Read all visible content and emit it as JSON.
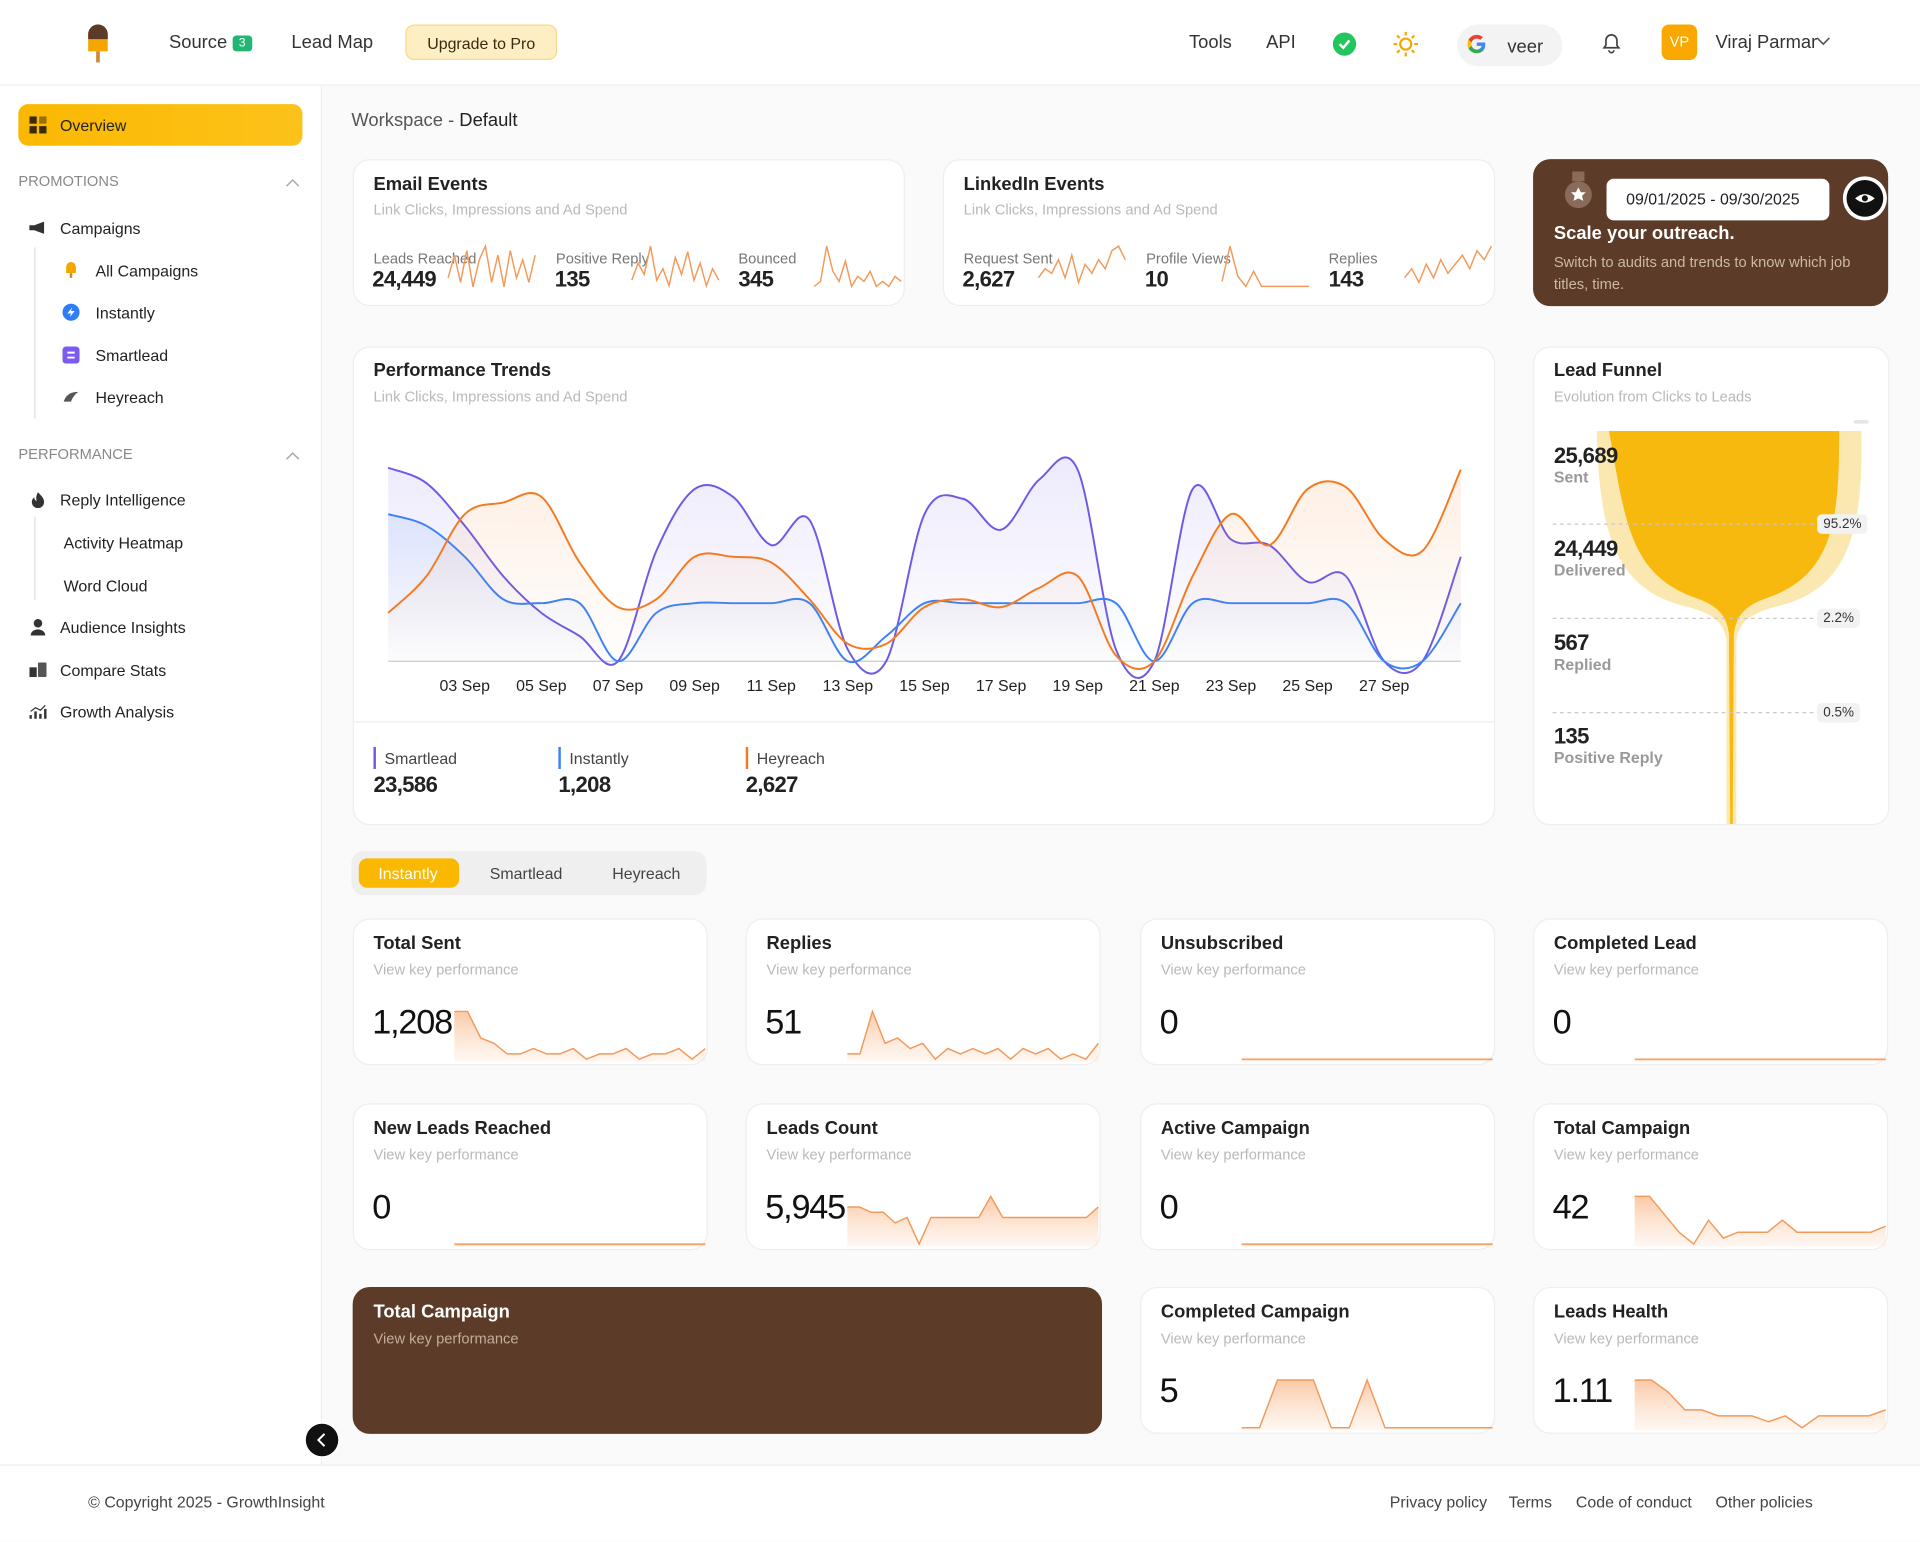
{
  "header": {
    "nav": [
      "Source",
      "Lead Map"
    ],
    "badge": "3",
    "upgrade": "Upgrade to Pro",
    "links": [
      "Tools",
      "API"
    ],
    "google": "veer",
    "avatar": "VP",
    "user": "Viraj Parmar"
  },
  "sidebar": {
    "active": "Overview",
    "sections": [
      {
        "title": "PROMOTIONS",
        "items": [
          "Campaigns",
          "All Campaigns",
          "Instantly",
          "Smartlead",
          "Heyreach"
        ]
      },
      {
        "title": "PERFORMANCE",
        "items": [
          "Reply Intelligence",
          "Activity Heatmap",
          "Word Cloud",
          "Audience Insights",
          "Compare Stats",
          "Growth Analysis"
        ]
      }
    ]
  },
  "workspace": {
    "label": "Workspace - ",
    "name": "Default"
  },
  "email_events": {
    "title": "Email Events",
    "subtitle": "Link Clicks, Impressions and Ad Spend",
    "metrics": [
      {
        "label": "Leads Reached",
        "value": "24,449",
        "spark": [
          3,
          8,
          2,
          9,
          1,
          7,
          10,
          2,
          8,
          1,
          9,
          3,
          7,
          2,
          8
        ]
      },
      {
        "label": "Positive Reply",
        "value": "135",
        "spark": [
          2,
          5,
          3,
          8,
          2,
          4,
          1,
          6,
          3,
          7,
          2,
          5,
          1,
          4,
          2
        ]
      },
      {
        "label": "Bounced",
        "value": "345",
        "spark": [
          1,
          2,
          9,
          4,
          2,
          6,
          1,
          3,
          2,
          4,
          1,
          2,
          1,
          3,
          2
        ]
      }
    ]
  },
  "linkedin_events": {
    "title": "LinkedIn Events",
    "subtitle": "Link Clicks, Impressions and Ad Spend",
    "metrics": [
      {
        "label": "Request Sent",
        "value": "2,627",
        "spark": [
          3,
          5,
          4,
          7,
          3,
          8,
          2,
          6,
          4,
          7,
          5,
          9,
          10,
          7
        ]
      },
      {
        "label": "Profile Views",
        "value": "10",
        "spark": [
          2,
          9,
          3,
          1,
          4,
          1,
          1,
          1,
          1,
          1,
          1,
          1
        ]
      },
      {
        "label": "Replies",
        "value": "143",
        "spark": [
          3,
          5,
          2,
          6,
          3,
          7,
          4,
          6,
          8,
          5,
          9,
          7,
          10
        ]
      }
    ]
  },
  "promo": {
    "date": "09/01/2025 - 09/30/2025",
    "title": "Scale your outreach.",
    "text": "Switch to audits and trends to know which job titles, time."
  },
  "chart_data": {
    "type": "line",
    "title": "Performance Trends",
    "subtitle": "Link Clicks, Impressions and Ad Spend",
    "categories": [
      null,
      null,
      "03 Sep",
      null,
      "05 Sep",
      null,
      "07 Sep",
      null,
      "09 Sep",
      null,
      "11 Sep",
      null,
      "13 Sep",
      null,
      "15 Sep",
      null,
      "17 Sep",
      null,
      "19 Sep",
      null,
      "21 Sep",
      null,
      "23 Sep",
      null,
      "25 Sep",
      null,
      "27 Sep",
      null,
      null
    ],
    "series": [
      {
        "name": "Smartlead",
        "total": "23,586",
        "color": "#6b5ae6",
        "values": [
          100,
          92,
          70,
          44,
          25,
          13,
          0,
          57,
          89,
          85,
          60,
          73,
          6,
          0,
          76,
          84,
          68,
          94,
          99,
          6,
          0,
          89,
          63,
          60,
          41,
          44,
          0,
          0,
          54
        ]
      },
      {
        "name": "Instantly",
        "total": "1,208",
        "color": "#3b82f6",
        "values": [
          76,
          70,
          54,
          32,
          30,
          30,
          0,
          25,
          30,
          30,
          30,
          30,
          0,
          13,
          30,
          30,
          30,
          30,
          30,
          30,
          0,
          30,
          30,
          30,
          30,
          30,
          0,
          0,
          30
        ]
      },
      {
        "name": "Heyreach",
        "total": "2,627",
        "color": "#f47a20",
        "values": [
          25,
          44,
          76,
          82,
          85,
          51,
          28,
          32,
          54,
          54,
          51,
          32,
          9,
          9,
          28,
          32,
          28,
          38,
          44,
          3,
          0,
          44,
          76,
          60,
          89,
          90,
          63,
          57,
          99
        ]
      }
    ]
  },
  "lead_funnel": {
    "title": "Lead Funnel",
    "subtitle": "Evolution from Clicks to Leads",
    "stages": [
      {
        "value": "25,689",
        "label": "Sent"
      },
      {
        "value": "24,449",
        "label": "Delivered"
      },
      {
        "value": "567",
        "label": "Replied"
      },
      {
        "value": "135",
        "label": "Positive Reply"
      }
    ],
    "rates": [
      "95.2%",
      "2.2%",
      "0.5%"
    ]
  },
  "tabs": [
    "Instantly",
    "Smartlead",
    "Heyreach"
  ],
  "cards": [
    {
      "title": "Total Sent",
      "subtitle": "View key performance",
      "value": "1,208",
      "spark": [
        9,
        9,
        4,
        3,
        1,
        1,
        2,
        1,
        1,
        2,
        0,
        1,
        1,
        2,
        0,
        1,
        1,
        2,
        0,
        2
      ]
    },
    {
      "title": "Replies",
      "subtitle": "View key performance",
      "value": "51",
      "spark": [
        1,
        1,
        9,
        3,
        4,
        2,
        3,
        0,
        2,
        1,
        2,
        1,
        2,
        0,
        2,
        1,
        2,
        0,
        1,
        0,
        3
      ]
    },
    {
      "title": "Unsubscribed",
      "subtitle": "View key performance",
      "value": "0",
      "spark": [
        0,
        0,
        0,
        0,
        0,
        0
      ]
    },
    {
      "title": "Completed Lead",
      "subtitle": "View key performance",
      "value": "0",
      "spark": [
        0,
        0,
        0,
        0,
        0
      ]
    },
    {
      "title": "New Leads Reached",
      "subtitle": "View key performance",
      "value": "0",
      "spark": [
        0,
        0,
        0,
        0
      ]
    },
    {
      "title": "Leads Count",
      "subtitle": "View key performance",
      "value": "5,945",
      "spark": [
        7,
        7,
        6,
        6,
        4,
        5,
        0,
        5,
        5,
        5,
        5,
        5,
        9,
        5,
        5,
        5,
        5,
        5,
        5,
        5,
        5,
        7
      ]
    },
    {
      "title": "Active Campaign",
      "subtitle": "View key performance",
      "value": "0",
      "spark": [
        0,
        0,
        0,
        0
      ]
    },
    {
      "title": "Total Campaign",
      "subtitle": "View key performance",
      "value": "42",
      "spark": [
        8,
        8,
        5,
        2,
        0,
        4,
        1,
        2,
        2,
        2,
        4,
        2,
        2,
        2,
        2,
        2,
        2,
        3
      ]
    },
    {
      "title": "Total Campaign",
      "subtitle": "View key performance"
    },
    {
      "title": "Completed Campaign",
      "subtitle": "View key performance",
      "value": "5",
      "spark": [
        0,
        0,
        9,
        9,
        9,
        0,
        0,
        9,
        0,
        0,
        0,
        0,
        0,
        0,
        0
      ]
    },
    {
      "title": "Leads Health",
      "subtitle": "View key performance",
      "value": "1.11",
      "spark": [
        8,
        8,
        6,
        3,
        3,
        2,
        2,
        2,
        1,
        2,
        0,
        2,
        2,
        2,
        2,
        3
      ]
    }
  ],
  "footer": {
    "copyright": "© Copyright 2025 - ",
    "brand": "GrowthInsight",
    "links": [
      "Privacy policy",
      "Terms",
      "Code of conduct",
      "Other policies"
    ]
  }
}
